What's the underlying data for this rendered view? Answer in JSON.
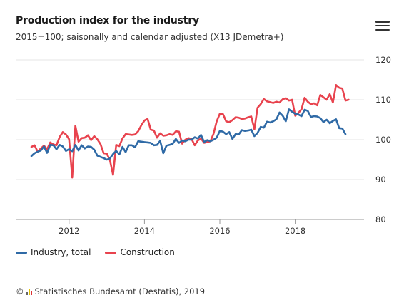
{
  "header": {
    "title": "Production index for the industry",
    "subtitle": "2015=100; saisonally and calendar adjusted (X13 JDemetra+)"
  },
  "menu": {
    "icon": "hamburger-menu-icon"
  },
  "credits": {
    "copyright": "©",
    "logo": "destatis-logo-icon",
    "text": "Statistisches Bundesamt (Destatis), 2019"
  },
  "chart_data": {
    "type": "line",
    "title": "Production index for the industry",
    "subtitle": "2015=100; saisonally and calendar adjusted (X13 JDemetra+)",
    "x_start": "2011-01",
    "x_frequency": "monthly",
    "x_ticks": [
      "2012",
      "2014",
      "2016",
      "2018"
    ],
    "ylim": [
      80,
      120
    ],
    "y_ticks": [
      80,
      90,
      100,
      110,
      120
    ],
    "y_axis_side": "right",
    "grid": true,
    "legend_position": "bottom-left",
    "series": [
      {
        "name": "Industry, total",
        "color": "#2f6aa6",
        "values": [
          95.9,
          96.6,
          97.0,
          97.3,
          98.3,
          96.7,
          98.7,
          98.6,
          97.6,
          98.7,
          98.3,
          97.2,
          97.6,
          97.1,
          98.7,
          97.3,
          98.6,
          97.8,
          98.3,
          98.2,
          97.5,
          96.0,
          95.7,
          95.4,
          95.0,
          95.3,
          96.4,
          97.2,
          96.3,
          98.2,
          96.9,
          98.6,
          98.6,
          98.1,
          99.6,
          99.5,
          99.4,
          99.3,
          99.2,
          98.6,
          98.7,
          99.7,
          96.6,
          98.5,
          98.7,
          99.0,
          100.2,
          99.2,
          99.8,
          99.6,
          100.0,
          100.0,
          100.6,
          100.3,
          101.2,
          99.4,
          99.9,
          99.6,
          100.0,
          100.5,
          102.2,
          102.0,
          101.4,
          101.9,
          100.2,
          101.4,
          101.3,
          102.4,
          102.2,
          102.3,
          102.5,
          100.9,
          101.7,
          103.2,
          103.0,
          104.5,
          104.3,
          104.6,
          105.1,
          106.8,
          106.0,
          104.6,
          107.6,
          107.0,
          106.5,
          106.3,
          105.9,
          107.5,
          107.2,
          105.7,
          105.9,
          105.8,
          105.4,
          104.4,
          105.0,
          104.1,
          104.7,
          105.1,
          102.9,
          102.8,
          101.4
        ]
      },
      {
        "name": "Construction",
        "color": "#e8434e",
        "values": [
          98.2,
          98.6,
          97.0,
          97.8,
          98.5,
          97.6,
          99.3,
          98.8,
          98.6,
          100.7,
          101.9,
          101.3,
          100.1,
          90.5,
          103.5,
          99.5,
          100.4,
          100.5,
          101.1,
          99.9,
          100.9,
          100.1,
          98.9,
          96.6,
          96.5,
          94.9,
          91.2,
          98.7,
          98.4,
          100.3,
          101.4,
          101.3,
          101.2,
          101.3,
          102.1,
          103.6,
          104.8,
          105.2,
          102.5,
          102.3,
          100.5,
          101.6,
          101.0,
          101.1,
          101.4,
          101.2,
          102.1,
          102.0,
          99.0,
          100.0,
          100.4,
          100.2,
          98.6,
          99.8,
          100.3,
          99.2,
          99.4,
          99.6,
          101.5,
          104.6,
          106.5,
          106.4,
          104.6,
          104.4,
          104.9,
          105.6,
          105.5,
          105.2,
          105.3,
          105.6,
          105.8,
          102.6,
          108.0,
          108.9,
          110.2,
          109.6,
          109.4,
          109.2,
          109.5,
          109.3,
          110.1,
          110.4,
          109.8,
          110.0,
          106.0,
          106.7,
          107.6,
          110.5,
          109.5,
          108.9,
          109.1,
          108.6,
          111.2,
          110.6,
          110.0,
          111.4,
          109.3,
          113.7,
          113.0,
          112.8,
          109.8,
          110.0
        ]
      }
    ]
  }
}
